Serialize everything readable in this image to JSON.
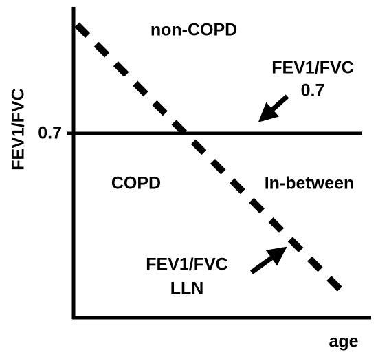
{
  "y_axis": {
    "label": "FEV1/FVC",
    "tick": "0.7"
  },
  "x_axis": {
    "label": "age"
  },
  "regions": {
    "upper": "non-COPD",
    "lower": "COPD",
    "middle": "In-between"
  },
  "annotations": [
    {
      "lines": [
        "FEV1/FVC",
        "0.7"
      ]
    },
    {
      "lines": [
        "FEV1/FVC",
        "LLN"
      ]
    }
  ]
}
